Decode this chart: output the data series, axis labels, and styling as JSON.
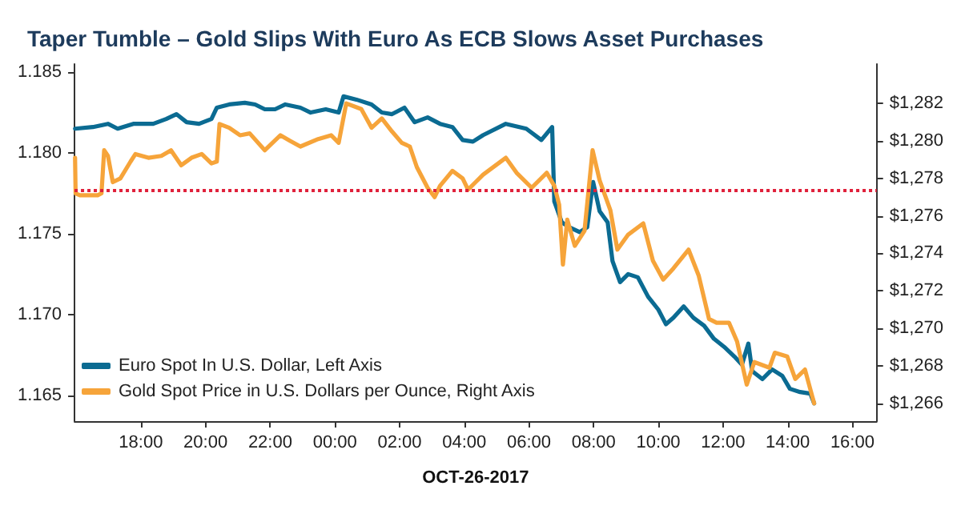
{
  "chart_data": {
    "type": "line",
    "title": "Taper Tumble – Gold Slips With Euro As ECB Slows Asset Purchases",
    "xlabel": "OCT-26-2017",
    "xlim": [
      "2017-10-25T15:57",
      "2017-10-26T16:45"
    ],
    "xticks": [
      {
        "value": "2017-10-25T18:00",
        "label": "18:00"
      },
      {
        "value": "2017-10-25T20:00",
        "label": "20:00"
      },
      {
        "value": "2017-10-25T22:00",
        "label": "22:00"
      },
      {
        "value": "2017-10-26T00:00",
        "label": "00:00"
      },
      {
        "value": "2017-10-26T02:00",
        "label": "02:00"
      },
      {
        "value": "2017-10-26T04:00",
        "label": "04:00"
      },
      {
        "value": "2017-10-26T06:00",
        "label": "06:00"
      },
      {
        "value": "2017-10-26T08:00",
        "label": "08:00"
      },
      {
        "value": "2017-10-26T10:00",
        "label": "10:00"
      },
      {
        "value": "2017-10-26T12:00",
        "label": "12:00"
      },
      {
        "value": "2017-10-26T14:00",
        "label": "14:00"
      },
      {
        "value": "2017-10-26T16:00",
        "label": "16:00"
      }
    ],
    "ylim": [
      1.1634,
      1.1855
    ],
    "yticks": [
      {
        "value": 1.165,
        "label": "1.165"
      },
      {
        "value": 1.17,
        "label": "1.170"
      },
      {
        "value": 1.175,
        "label": "1.175"
      },
      {
        "value": 1.18,
        "label": "1.180"
      },
      {
        "value": 1.185,
        "label": "1.185"
      }
    ],
    "y2lim": [
      1265.05,
      1284.1
    ],
    "y2ticks": [
      {
        "value": 1266,
        "label": "$1,266"
      },
      {
        "value": 1268,
        "label": "$1,268"
      },
      {
        "value": 1270,
        "label": "$1,270"
      },
      {
        "value": 1272,
        "label": "$1,272"
      },
      {
        "value": 1274,
        "label": "$1,274"
      },
      {
        "value": 1276,
        "label": "$1,276"
      },
      {
        "value": 1278,
        "label": "$1,278"
      },
      {
        "value": 1280,
        "label": "$1,280"
      },
      {
        "value": 1282,
        "label": "$1,282"
      }
    ],
    "grid": false,
    "legend": "bottom left",
    "marker": "none",
    "line_style": "solid",
    "ref_lines": [
      {
        "axis": "y2",
        "value": 1277.35,
        "color": "#e0203a",
        "line_style": "dotted"
      }
    ],
    "series": [
      {
        "name": "Euro Spot In U.S. Dollar, Left Axis",
        "color": "#0b6b92",
        "axis": "y",
        "x": [
          "2017-10-25T15:58",
          "2017-10-25T16:31",
          "2017-10-25T16:59",
          "2017-10-25T17:17",
          "2017-10-25T17:46",
          "2017-10-25T18:23",
          "2017-10-25T18:47",
          "2017-10-25T19:06",
          "2017-10-25T19:25",
          "2017-10-25T19:48",
          "2017-10-25T20:11",
          "2017-10-25T20:21",
          "2017-10-25T20:44",
          "2017-10-25T21:13",
          "2017-10-25T21:32",
          "2017-10-25T21:50",
          "2017-10-25T22:09",
          "2017-10-25T22:28",
          "2017-10-25T22:56",
          "2017-10-25T23:15",
          "2017-10-25T23:43",
          "2017-10-26T00:07",
          "2017-10-26T00:16",
          "2017-10-26T00:40",
          "2017-10-26T01:08",
          "2017-10-26T01:27",
          "2017-10-26T01:46",
          "2017-10-26T02:09",
          "2017-10-26T02:28",
          "2017-10-26T02:52",
          "2017-10-26T03:15",
          "2017-10-26T03:38",
          "2017-10-26T03:57",
          "2017-10-26T04:16",
          "2017-10-26T04:35",
          "2017-10-26T05:17",
          "2017-10-26T05:55",
          "2017-10-26T06:23",
          "2017-10-26T06:43",
          "2017-10-26T06:47",
          "2017-10-26T07:01",
          "2017-10-26T07:15",
          "2017-10-26T07:34",
          "2017-10-26T07:48",
          "2017-10-26T07:59",
          "2017-10-26T08:11",
          "2017-10-26T08:26",
          "2017-10-26T08:35",
          "2017-10-26T08:49",
          "2017-10-26T09:04",
          "2017-10-26T09:22",
          "2017-10-26T09:41",
          "2017-10-26T10:00",
          "2017-10-26T10:14",
          "2017-10-26T10:28",
          "2017-10-26T10:47",
          "2017-10-26T11:05",
          "2017-10-26T11:25",
          "2017-10-26T11:43",
          "2017-10-26T12:02",
          "2017-10-26T12:21",
          "2017-10-26T12:35",
          "2017-10-26T12:47",
          "2017-10-26T12:54",
          "2017-10-26T13:13",
          "2017-10-26T13:31",
          "2017-10-26T13:50",
          "2017-10-26T14:04",
          "2017-10-26T14:23",
          "2017-10-26T14:42",
          "2017-10-26T14:49"
        ],
        "values": [
          1.1815,
          1.1816,
          1.1818,
          1.1815,
          1.1818,
          1.1818,
          1.1821,
          1.1824,
          1.1819,
          1.1818,
          1.1821,
          1.1828,
          1.183,
          1.1831,
          1.183,
          1.1827,
          1.1827,
          1.183,
          1.1828,
          1.1825,
          1.1827,
          1.1825,
          1.1835,
          1.1833,
          1.183,
          1.1825,
          1.1824,
          1.1828,
          1.1819,
          1.1822,
          1.1818,
          1.1816,
          1.1808,
          1.1807,
          1.1811,
          1.1818,
          1.1815,
          1.1808,
          1.1816,
          1.177,
          1.1757,
          1.1754,
          1.1751,
          1.1754,
          1.1782,
          1.1764,
          1.1757,
          1.1733,
          1.172,
          1.1725,
          1.1723,
          1.1711,
          1.1703,
          1.1694,
          1.1698,
          1.1705,
          1.1698,
          1.1693,
          1.1685,
          1.168,
          1.1674,
          1.1669,
          1.1682,
          1.1665,
          1.166,
          1.1666,
          1.1662,
          1.1654,
          1.1652,
          1.1651,
          1.1645
        ]
      },
      {
        "name": "Gold Spot Price in U.S. Dollars per Ounce, Right Axis",
        "color": "#f6a43a",
        "axis": "y2",
        "x": [
          "2017-10-25T15:58",
          "2017-10-25T15:59",
          "2017-10-25T16:07",
          "2017-10-25T16:40",
          "2017-10-25T16:47",
          "2017-10-25T16:52",
          "2017-10-25T16:59",
          "2017-10-25T17:08",
          "2017-10-25T17:22",
          "2017-10-25T17:41",
          "2017-10-25T17:50",
          "2017-10-25T18:14",
          "2017-10-25T18:38",
          "2017-10-25T18:56",
          "2017-10-25T19:15",
          "2017-10-25T19:34",
          "2017-10-25T19:53",
          "2017-10-25T20:11",
          "2017-10-25T20:21",
          "2017-10-25T20:26",
          "2017-10-25T20:44",
          "2017-10-25T21:04",
          "2017-10-25T21:22",
          "2017-10-25T21:50",
          "2017-10-25T22:19",
          "2017-10-25T22:37",
          "2017-10-25T22:56",
          "2017-10-25T23:29",
          "2017-10-25T23:53",
          "2017-10-26T00:07",
          "2017-10-26T00:21",
          "2017-10-26T00:49",
          "2017-10-26T01:08",
          "2017-10-26T01:27",
          "2017-10-26T01:46",
          "2017-10-26T02:04",
          "2017-10-26T02:19",
          "2017-10-26T02:32",
          "2017-10-26T02:52",
          "2017-10-26T03:05",
          "2017-10-26T03:15",
          "2017-10-26T03:38",
          "2017-10-26T03:57",
          "2017-10-26T04:07",
          "2017-10-26T04:21",
          "2017-10-26T04:35",
          "2017-10-26T05:17",
          "2017-10-26T05:37",
          "2017-10-26T06:05",
          "2017-10-26T06:33",
          "2017-10-26T06:47",
          "2017-10-26T06:56",
          "2017-10-26T07:03",
          "2017-10-26T07:11",
          "2017-10-26T07:25",
          "2017-10-26T07:43",
          "2017-10-26T07:58",
          "2017-10-26T08:11",
          "2017-10-26T08:31",
          "2017-10-26T08:44",
          "2017-10-26T09:04",
          "2017-10-26T09:32",
          "2017-10-26T09:50",
          "2017-10-26T10:09",
          "2017-10-26T10:28",
          "2017-10-26T10:56",
          "2017-10-26T11:15",
          "2017-10-26T11:34",
          "2017-10-26T11:48",
          "2017-10-26T12:11",
          "2017-10-26T12:26",
          "2017-10-26T12:44",
          "2017-10-26T12:58",
          "2017-10-26T13:26",
          "2017-10-26T13:36",
          "2017-10-26T13:59",
          "2017-10-26T14:14",
          "2017-10-26T14:32",
          "2017-10-26T14:49"
        ],
        "values": [
          1279.1,
          1277.2,
          1277.1,
          1277.1,
          1277.2,
          1279.5,
          1279.2,
          1277.8,
          1278.0,
          1278.9,
          1279.3,
          1279.1,
          1279.2,
          1279.5,
          1278.7,
          1279.1,
          1279.3,
          1278.8,
          1278.9,
          1280.9,
          1280.7,
          1280.3,
          1280.4,
          1279.5,
          1280.3,
          1280.0,
          1279.7,
          1280.1,
          1280.3,
          1279.9,
          1282.0,
          1281.7,
          1280.7,
          1281.2,
          1280.5,
          1279.9,
          1279.7,
          1278.6,
          1277.5,
          1277.0,
          1277.6,
          1278.4,
          1278.0,
          1277.4,
          1277.8,
          1278.2,
          1279.1,
          1278.3,
          1277.5,
          1278.3,
          1277.6,
          1276.6,
          1273.4,
          1275.8,
          1274.4,
          1275.2,
          1279.5,
          1277.9,
          1276.3,
          1274.2,
          1275.0,
          1275.6,
          1273.6,
          1272.6,
          1273.2,
          1274.2,
          1272.8,
          1270.5,
          1270.3,
          1270.3,
          1269.3,
          1267.0,
          1268.2,
          1267.9,
          1268.7,
          1268.5,
          1267.3,
          1267.8,
          1266.0
        ]
      }
    ]
  }
}
